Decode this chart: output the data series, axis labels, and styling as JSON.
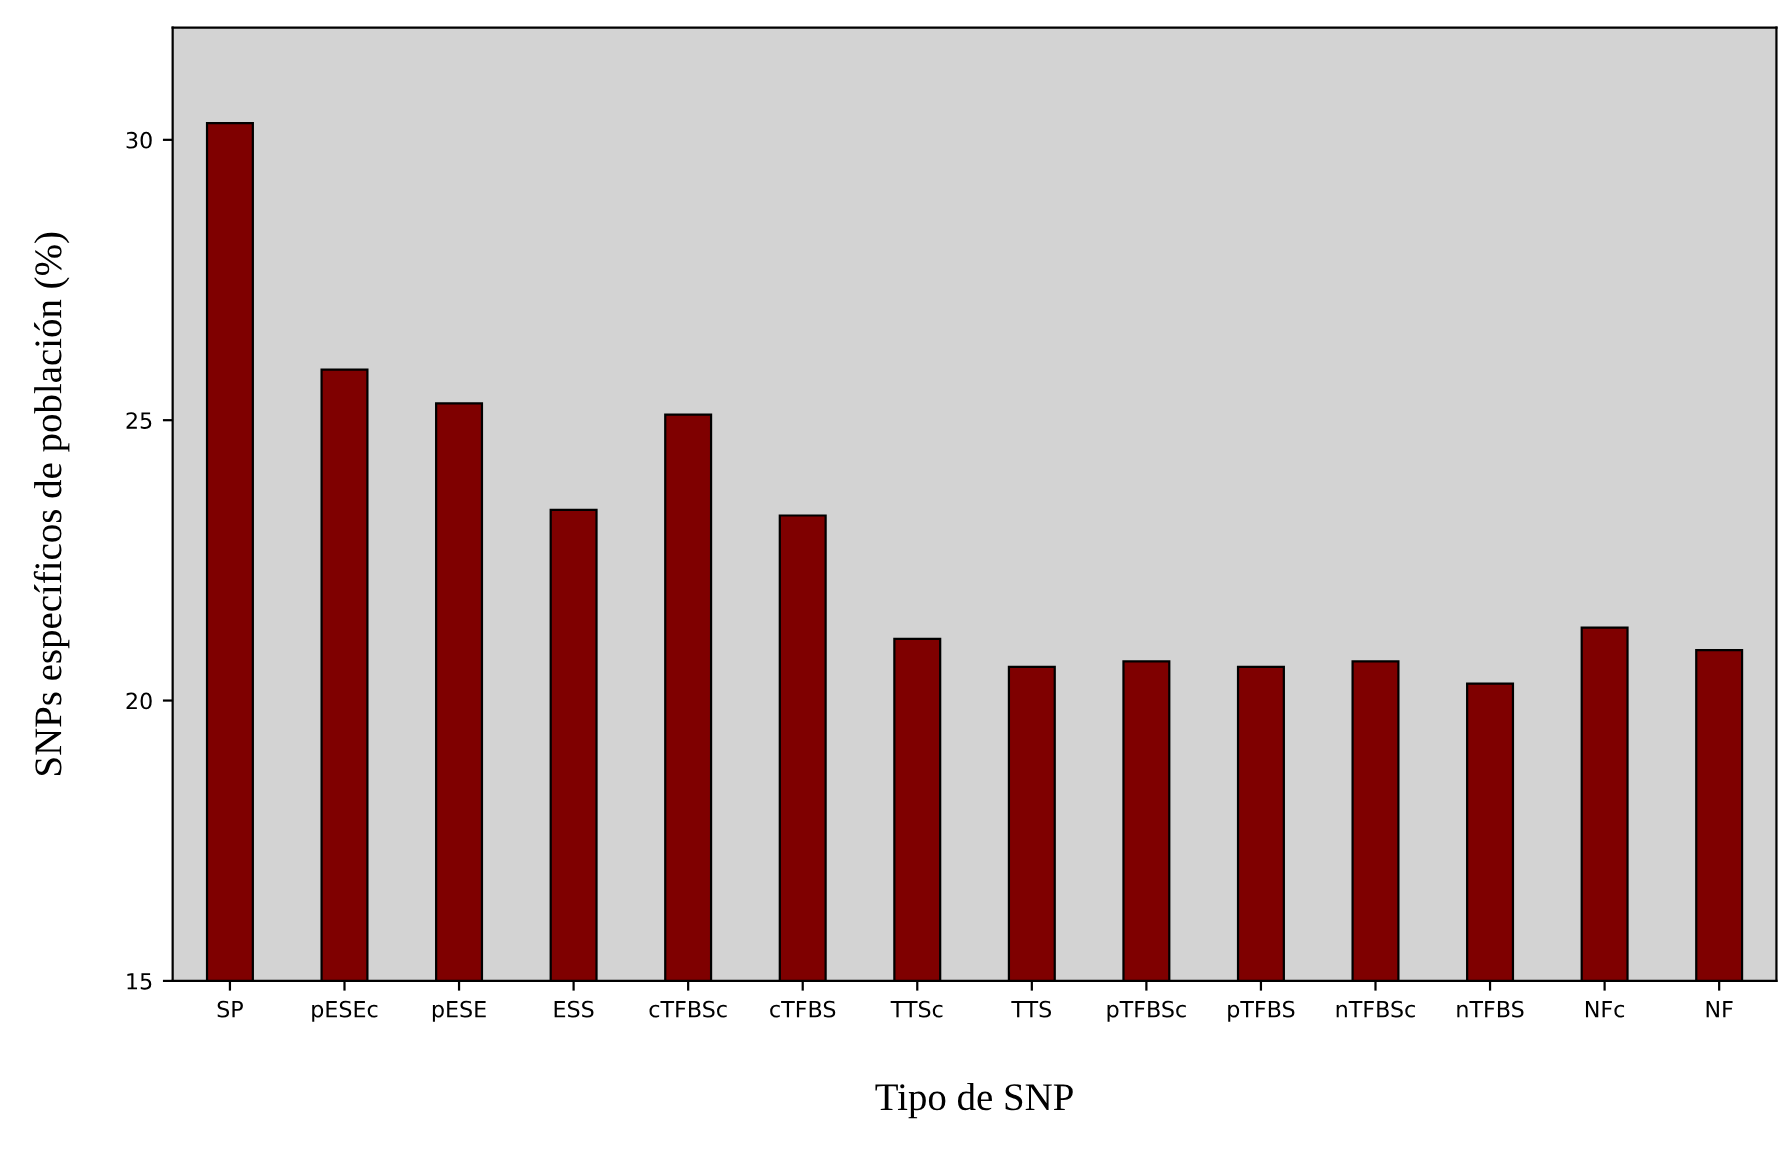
{
  "chart_data": {
    "type": "bar",
    "xlabel": "Tipo de SNP",
    "ylabel": "SNPs específicos de población (%)",
    "categories": [
      "SP",
      "pESEc",
      "pESE",
      "ESS",
      "cTFBSc",
      "cTFBS",
      "TTSc",
      "TTS",
      "pTFBSc",
      "pTFBS",
      "nTFBSc",
      "nTFBS",
      "NFc",
      "NF"
    ],
    "values": [
      30.3,
      25.9,
      25.3,
      23.4,
      25.1,
      23.3,
      21.1,
      20.6,
      20.7,
      20.6,
      20.7,
      20.3,
      21.3,
      20.9
    ],
    "color": "#7f0000",
    "ylim": [
      15,
      32
    ],
    "yticks": [
      15,
      20,
      25,
      30
    ],
    "grid": false,
    "legend": false
  }
}
